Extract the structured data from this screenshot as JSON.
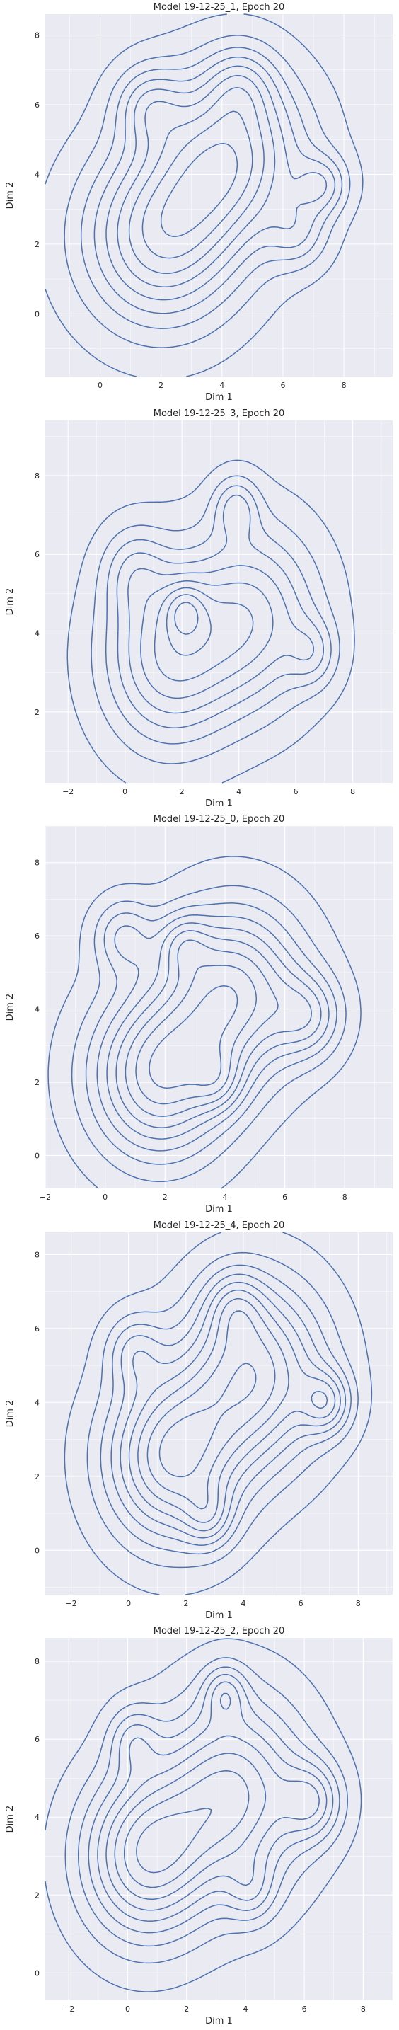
{
  "chart_data": [
    {
      "type": "contour",
      "title": "Model 19-12-25_1, Epoch 20",
      "xlabel": "Dim 1",
      "ylabel": "Dim 2",
      "xlim": [
        -1.8,
        9.6
      ],
      "ylim": [
        -1.8,
        8.6
      ],
      "xticks": [
        "0",
        "2",
        "4",
        "6",
        "8"
      ],
      "yticks": [
        "0",
        "2",
        "4",
        "6",
        "8"
      ],
      "grid": true,
      "line_color": "#4c72b0",
      "background": "#eaeaf2",
      "levels": 9,
      "blobs": [
        {
          "x": 2.0,
          "y": 2.2,
          "s": 1.8,
          "w": 1.0
        },
        {
          "x": 4.3,
          "y": 4.6,
          "s": 1.7,
          "w": 1.0
        },
        {
          "x": 1.6,
          "y": 6.0,
          "s": 0.8,
          "w": 0.45
        },
        {
          "x": 7.3,
          "y": 3.7,
          "s": 0.6,
          "w": 0.45
        },
        {
          "x": 6.5,
          "y": 2.3,
          "s": 0.7,
          "w": 0.35
        },
        {
          "x": 4.6,
          "y": 6.6,
          "s": 0.8,
          "w": 0.35
        }
      ]
    },
    {
      "type": "contour",
      "title": "Model 19-12-25_3, Epoch 20",
      "xlabel": "Dim 1",
      "ylabel": "Dim 2",
      "xlim": [
        -2.8,
        9.4
      ],
      "ylim": [
        0.2,
        9.4
      ],
      "xticks": [
        "−2",
        "0",
        "2",
        "4",
        "6",
        "8"
      ],
      "yticks": [
        "2",
        "4",
        "6",
        "8"
      ],
      "grid": true,
      "line_color": "#4c72b0",
      "background": "#eaeaf2",
      "levels": 9,
      "blobs": [
        {
          "x": 1.5,
          "y": 3.4,
          "s": 1.6,
          "w": 1.0
        },
        {
          "x": 4.5,
          "y": 4.4,
          "s": 1.6,
          "w": 0.9
        },
        {
          "x": 3.9,
          "y": 7.2,
          "s": 0.55,
          "w": 0.5
        },
        {
          "x": 2.1,
          "y": 4.6,
          "s": 0.5,
          "w": 0.45
        },
        {
          "x": 6.6,
          "y": 3.5,
          "s": 0.6,
          "w": 0.4
        },
        {
          "x": 0.3,
          "y": 5.6,
          "s": 0.8,
          "w": 0.4
        }
      ]
    },
    {
      "type": "contour",
      "title": "Model 19-12-25_0, Epoch 20",
      "xlabel": "Dim 1",
      "ylabel": "Dim 2",
      "xlim": [
        -2.0,
        9.6
      ],
      "ylim": [
        -0.9,
        9.0
      ],
      "xticks": [
        "−2",
        "0",
        "2",
        "4",
        "6",
        "8"
      ],
      "yticks": [
        "0",
        "2",
        "4",
        "6",
        "8"
      ],
      "grid": true,
      "line_color": "#4c72b0",
      "background": "#eaeaf2",
      "levels": 9,
      "blobs": [
        {
          "x": 1.8,
          "y": 2.2,
          "s": 1.6,
          "w": 1.0
        },
        {
          "x": 4.3,
          "y": 4.5,
          "s": 1.6,
          "w": 0.95
        },
        {
          "x": 0.6,
          "y": 6.0,
          "s": 0.7,
          "w": 0.4
        },
        {
          "x": 6.8,
          "y": 3.8,
          "s": 0.8,
          "w": 0.45
        },
        {
          "x": 2.6,
          "y": 5.8,
          "s": 0.6,
          "w": 0.35
        },
        {
          "x": 3.8,
          "y": 2.0,
          "s": 0.6,
          "w": 0.3
        }
      ]
    },
    {
      "type": "contour",
      "title": "Model 19-12-25_4, Epoch 20",
      "xlabel": "Dim 1",
      "ylabel": "Dim 2",
      "xlim": [
        -2.9,
        9.2
      ],
      "ylim": [
        -1.2,
        8.6
      ],
      "xticks": [
        "−2",
        "0",
        "2",
        "4",
        "6",
        "8"
      ],
      "yticks": [
        "0",
        "2",
        "4",
        "6",
        "8"
      ],
      "grid": true,
      "line_color": "#4c72b0",
      "background": "#eaeaf2",
      "levels": 9,
      "blobs": [
        {
          "x": 1.5,
          "y": 2.5,
          "s": 1.6,
          "w": 1.0
        },
        {
          "x": 4.4,
          "y": 4.8,
          "s": 1.7,
          "w": 0.95
        },
        {
          "x": 6.9,
          "y": 4.0,
          "s": 0.6,
          "w": 0.5
        },
        {
          "x": 2.8,
          "y": 0.9,
          "s": 0.6,
          "w": 0.35
        },
        {
          "x": 0.2,
          "y": 5.4,
          "s": 0.7,
          "w": 0.35
        },
        {
          "x": 3.7,
          "y": 6.6,
          "s": 0.7,
          "w": 0.35
        }
      ]
    },
    {
      "type": "contour",
      "title": "Model 19-12-25_2, Epoch 20",
      "xlabel": "Dim 1",
      "ylabel": "Dim 2",
      "xlim": [
        -2.8,
        9.0
      ],
      "ylim": [
        -0.7,
        8.6
      ],
      "xticks": [
        "−2",
        "0",
        "2",
        "4",
        "6",
        "8"
      ],
      "yticks": [
        "0",
        "2",
        "4",
        "6",
        "8"
      ],
      "grid": true,
      "line_color": "#4c72b0",
      "background": "#eaeaf2",
      "levels": 9,
      "blobs": [
        {
          "x": 0.6,
          "y": 3.0,
          "s": 1.5,
          "w": 1.0
        },
        {
          "x": 3.6,
          "y": 4.6,
          "s": 1.7,
          "w": 0.95
        },
        {
          "x": 6.3,
          "y": 4.4,
          "s": 0.7,
          "w": 0.5
        },
        {
          "x": 3.3,
          "y": 7.2,
          "s": 0.5,
          "w": 0.4
        },
        {
          "x": 0.2,
          "y": 6.0,
          "s": 0.6,
          "w": 0.35
        },
        {
          "x": 4.2,
          "y": 2.1,
          "s": 0.6,
          "w": 0.3
        }
      ]
    }
  ]
}
